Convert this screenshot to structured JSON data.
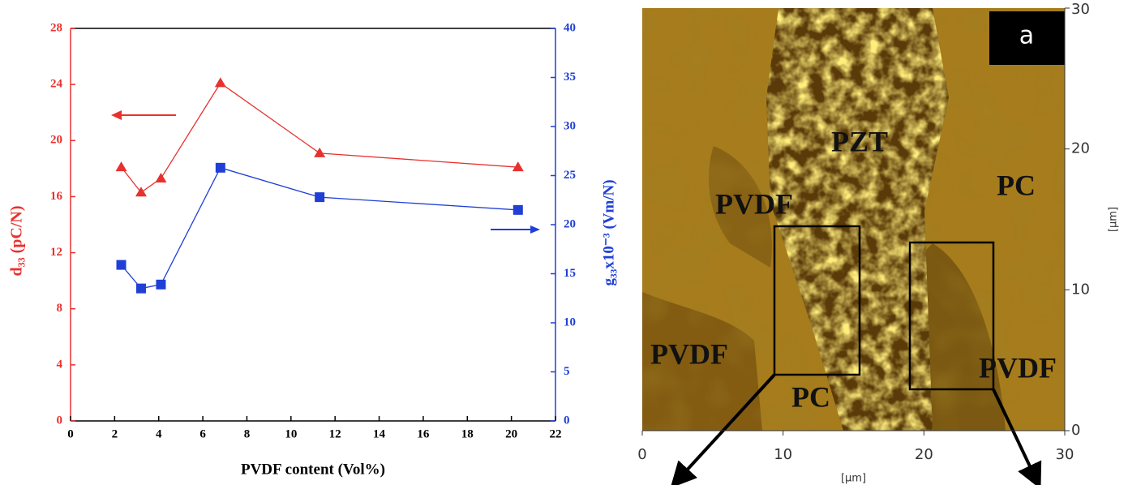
{
  "chart_data": [
    {
      "type": "line",
      "xlabel": "PVDF content (Vol%)",
      "ylabel": "d₃₃ (pC/N)",
      "y2label": "g₃₃x10⁻³ (Vm/N)",
      "x": [
        2.3,
        3.2,
        4.1,
        6.8,
        11.3,
        20.3
      ],
      "series": [
        {
          "color": "#e8312f",
          "marker": "triangle",
          "values": [
            18.1,
            16.3,
            17.3,
            24.1,
            19.1,
            18.1
          ]
        },
        {
          "color": "#1f3fd6",
          "marker": "square",
          "axis": "y2",
          "values": [
            15.9,
            13.5,
            13.9,
            25.8,
            22.8,
            21.5
          ]
        }
      ],
      "xlim": [
        0,
        22
      ],
      "xticks": [
        0,
        2,
        4,
        6,
        8,
        10,
        12,
        14,
        16,
        18,
        20,
        22
      ],
      "ylim": [
        0,
        28
      ],
      "yticks": [
        0,
        4,
        8,
        12,
        16,
        20,
        24,
        28
      ],
      "y2lim": [
        0,
        40
      ],
      "y2ticks": [
        0,
        5,
        10,
        15,
        20,
        25,
        30,
        35,
        40
      ]
    },
    {
      "type": "image",
      "label": "a",
      "xlabel": "[µm]",
      "ylabel": "[µm]",
      "xlim": [
        0,
        30
      ],
      "xticks": [
        0,
        10,
        20,
        30
      ],
      "ylim": [
        0,
        30
      ],
      "yticks": [
        0,
        10,
        20,
        30
      ],
      "annotations": [
        "PZT",
        "PC",
        "PVDF",
        "PVDF",
        "PC",
        "PVDF"
      ]
    }
  ]
}
